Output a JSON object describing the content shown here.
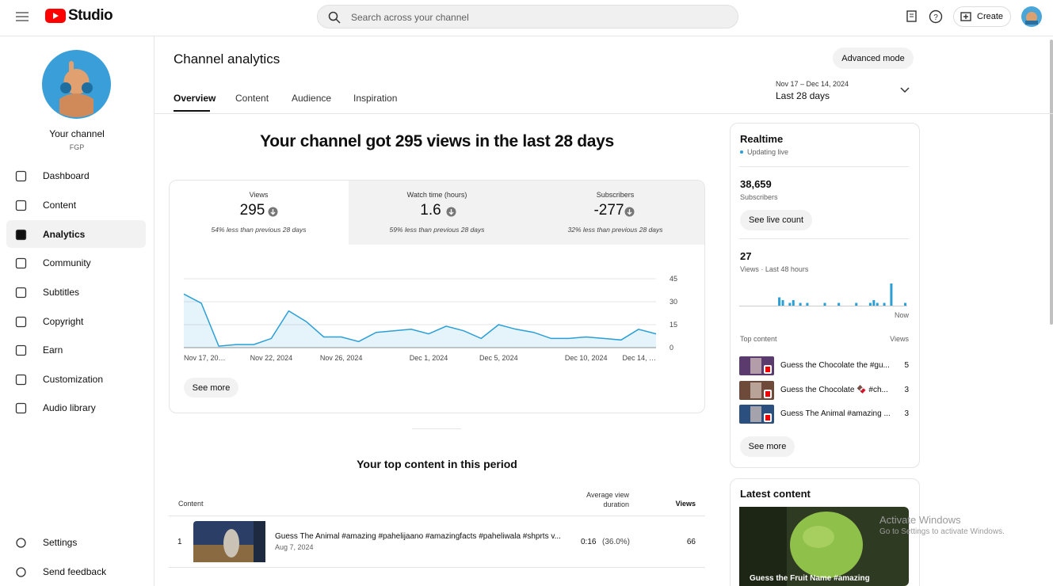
{
  "header": {
    "logo": "Studio",
    "search_placeholder": "Search across your channel",
    "create": "Create"
  },
  "sidebar": {
    "channel_title": "Your channel",
    "channel_name": "FGP",
    "nav": [
      "Dashboard",
      "Content",
      "Analytics",
      "Community",
      "Subtitles",
      "Copyright",
      "Earn",
      "Customization",
      "Audio library"
    ],
    "footer_nav": [
      "Settings",
      "Send feedback"
    ]
  },
  "page": {
    "title": "Channel analytics",
    "advanced_mode": "Advanced mode",
    "tabs": [
      "Overview",
      "Content",
      "Audience",
      "Inspiration"
    ],
    "date_range": "Nov 17 – Dec 14, 2024",
    "period": "Last 28 days",
    "headline": "Your channel got 295 views in the last 28 days",
    "see_more": "See more"
  },
  "metrics": [
    {
      "label": "Views",
      "value": "295",
      "note": "54% less than previous 28 days"
    },
    {
      "label": "Watch time (hours)",
      "value": "1.6",
      "note": "59% less than previous 28 days"
    },
    {
      "label": "Subscribers",
      "value": "-277",
      "note": "32% less than previous 28 days"
    }
  ],
  "chart_data": [
    {
      "type": "line",
      "area": true,
      "color": "#2a9fd6",
      "categories": [
        "Nov 17, 20…",
        null,
        null,
        null,
        null,
        "Nov 22, 2024",
        null,
        null,
        null,
        "Nov 26, 2024",
        null,
        null,
        null,
        null,
        "Dec 1, 2024",
        null,
        null,
        null,
        "Dec 5, 2024",
        null,
        null,
        null,
        null,
        "Dec 10, 2024",
        null,
        null,
        null,
        "Dec 14, …"
      ],
      "values": [
        35,
        29,
        1,
        2,
        2,
        6,
        24,
        17,
        7,
        7,
        4,
        10,
        11,
        12,
        9,
        14,
        11,
        6,
        15,
        12,
        10,
        6,
        6,
        7,
        6,
        5,
        12,
        9
      ],
      "ylim": [
        0,
        45
      ],
      "yticks": [
        0,
        15,
        30,
        45
      ],
      "grid": true
    },
    {
      "type": "bar",
      "color": "#2a9fd6",
      "categories": [
        null,
        null,
        null,
        null,
        null,
        null,
        null,
        null,
        null,
        null,
        null,
        null,
        null,
        null,
        null,
        null,
        null,
        null,
        null,
        null,
        null,
        null,
        null,
        null,
        null,
        null,
        null,
        null,
        null,
        null,
        null,
        null,
        null,
        null,
        null,
        null,
        null,
        null,
        null,
        null,
        null,
        null,
        null,
        null,
        null,
        null,
        null,
        "Now"
      ],
      "values": [
        0,
        0,
        0,
        0,
        0,
        0,
        0,
        0,
        0,
        0,
        0,
        3,
        2,
        0,
        1,
        2,
        0,
        1,
        0,
        1,
        0,
        0,
        0,
        0,
        1,
        0,
        0,
        0,
        1,
        0,
        0,
        0,
        0,
        1,
        0,
        0,
        0,
        1,
        2,
        1,
        0,
        1,
        0,
        8,
        0,
        0,
        0,
        1
      ]
    }
  ],
  "top_content": {
    "title": "Your top content in this period",
    "columns": [
      "Content",
      "Average view duration",
      "Views"
    ],
    "rows": [
      {
        "rank": "1",
        "title": "Guess The Animal #amazing #pahelijaano #amazingfacts #paheliwala #shprts v...",
        "date": "Aug 7, 2024",
        "avg_duration": "0:16",
        "avg_percent": "(36.0%)",
        "views": "66"
      }
    ]
  },
  "realtime": {
    "title": "Realtime",
    "status": "Updating live",
    "subscribers": "38,659",
    "subscribers_label": "Subscribers",
    "see_live": "See live count",
    "views": "27",
    "views_label": "Views · Last 48 hours",
    "top_content_label": "Top content",
    "views_column": "Views",
    "items": [
      {
        "title": "Guess the Chocolate the #gu...",
        "views": "5"
      },
      {
        "title": "Guess the Chocolate 🍫 #ch...",
        "views": "3"
      },
      {
        "title": "Guess The Animal #amazing ...",
        "views": "3"
      }
    ],
    "see_more": "See more"
  },
  "latest_content": {
    "title": "Latest content",
    "video_title": "Guess the Fruit Name #amazing"
  },
  "watermark": {
    "title": "Activate Windows",
    "text": "Go to Settings to activate Windows."
  }
}
